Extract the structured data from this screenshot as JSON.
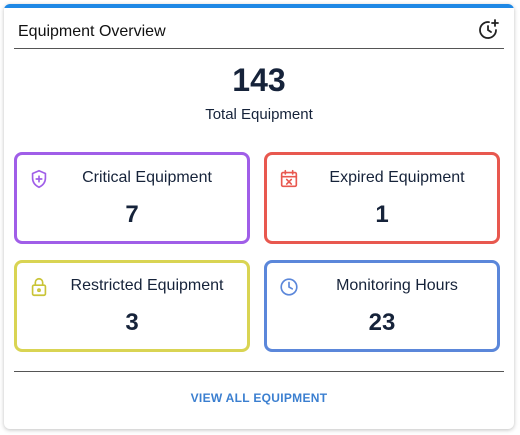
{
  "header": {
    "title": "Equipment Overview",
    "history_icon": "history-add-icon"
  },
  "summary": {
    "total_value": "143",
    "total_label": "Total Equipment"
  },
  "tiles": [
    {
      "label": "Critical Equipment",
      "value": "7",
      "icon": "shield-plus-icon",
      "color": "#a05ee8"
    },
    {
      "label": "Expired Equipment",
      "value": "1",
      "icon": "calendar-x-icon",
      "color": "#e8584f"
    },
    {
      "label": "Restricted Equipment",
      "value": "3",
      "icon": "lock-icon",
      "color": "#d9d453"
    },
    {
      "label": "Monitoring Hours",
      "value": "23",
      "icon": "clock-icon",
      "color": "#5b87da"
    }
  ],
  "footer": {
    "view_all_label": "VIEW ALL EQUIPMENT"
  },
  "colors": {
    "accent_bar": "#1e88e5",
    "link": "#3b7fd0",
    "text": "#16233a"
  }
}
